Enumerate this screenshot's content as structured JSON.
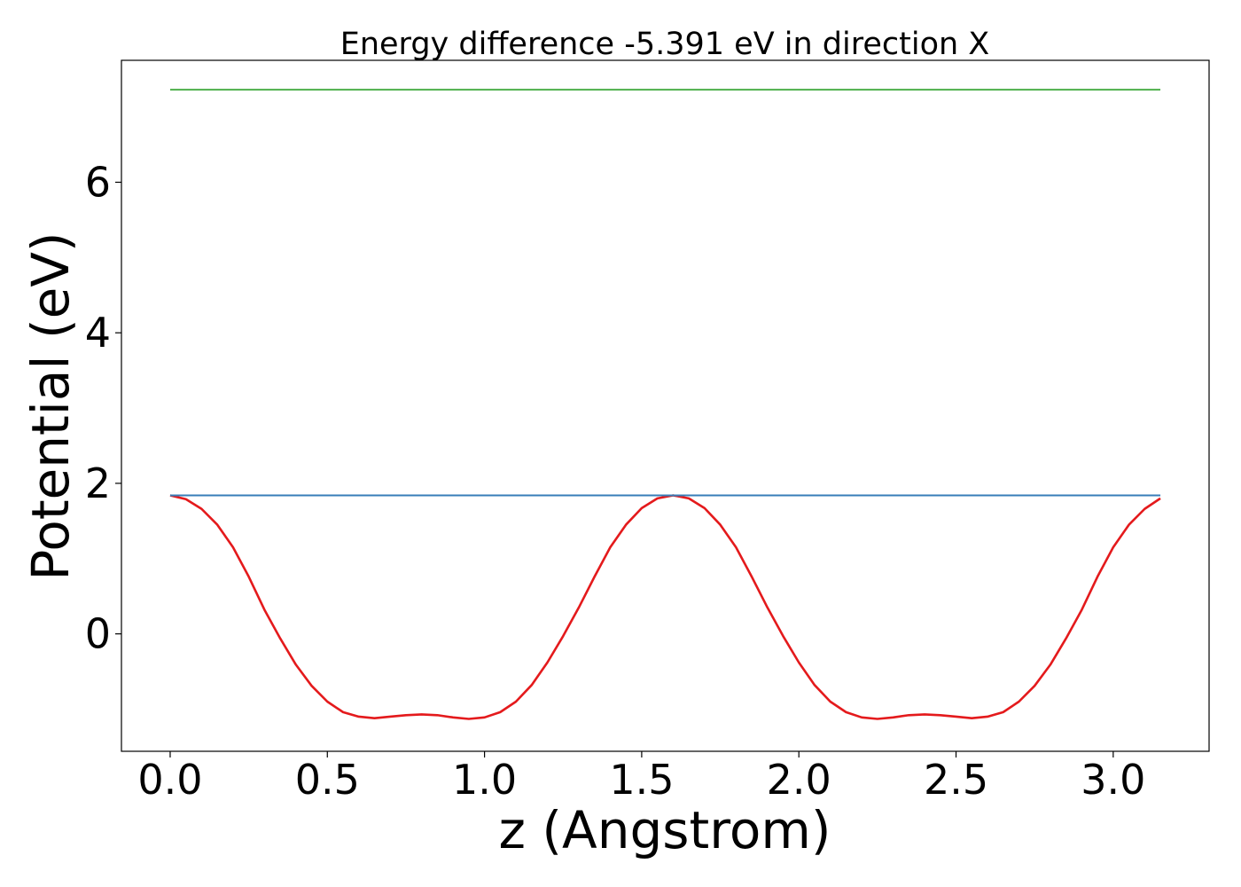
{
  "chart_data": {
    "type": "line",
    "title": "Energy difference -5.391 eV in direction X",
    "xlabel": "z (Angstrom)",
    "ylabel": "Potential (eV)",
    "xlim": [
      -0.155,
      3.305
    ],
    "ylim": [
      -1.56,
      7.62
    ],
    "xticks": [
      0.0,
      0.5,
      1.0,
      1.5,
      2.0,
      2.5,
      3.0
    ],
    "xtick_labels": [
      "0.0",
      "0.5",
      "1.0",
      "1.5",
      "2.0",
      "2.5",
      "3.0"
    ],
    "yticks": [
      0,
      2,
      4,
      6
    ],
    "ytick_labels": [
      "0",
      "2",
      "4",
      "6"
    ],
    "grid": false,
    "colors": {
      "potential": "#e41a1c",
      "blue_level": "#377eb8",
      "green_level": "#4daf4a"
    },
    "series": [
      {
        "color": "#e41a1c",
        "x": [
          0.0,
          0.05,
          0.1,
          0.15,
          0.2,
          0.25,
          0.3,
          0.35,
          0.4,
          0.45,
          0.5,
          0.55,
          0.6,
          0.65,
          0.7,
          0.75,
          0.8,
          0.85,
          0.9,
          0.95,
          1.0,
          1.05,
          1.1,
          1.15,
          1.2,
          1.25,
          1.3,
          1.35,
          1.4,
          1.45,
          1.5,
          1.55,
          1.6,
          1.65,
          1.7,
          1.75,
          1.8,
          1.85,
          1.9,
          1.95,
          2.0,
          2.05,
          2.1,
          2.15,
          2.2,
          2.25,
          2.3,
          2.35,
          2.4,
          2.45,
          2.5,
          2.55,
          2.6,
          2.65,
          2.7,
          2.75,
          2.8,
          2.85,
          2.9,
          2.95,
          3.0,
          3.05,
          3.1,
          3.15
        ],
        "y": [
          1.84,
          1.79,
          1.66,
          1.45,
          1.15,
          0.76,
          0.32,
          -0.06,
          -0.41,
          -0.69,
          -0.9,
          -1.04,
          -1.1,
          -1.12,
          -1.1,
          -1.08,
          -1.07,
          -1.08,
          -1.11,
          -1.13,
          -1.11,
          -1.04,
          -0.9,
          -0.68,
          -0.38,
          -0.03,
          0.35,
          0.76,
          1.15,
          1.45,
          1.67,
          1.8,
          1.84,
          1.8,
          1.67,
          1.45,
          1.15,
          0.76,
          0.35,
          -0.03,
          -0.38,
          -0.68,
          -0.9,
          -1.04,
          -1.11,
          -1.13,
          -1.11,
          -1.08,
          -1.07,
          -1.08,
          -1.1,
          -1.12,
          -1.1,
          -1.04,
          -0.9,
          -0.69,
          -0.41,
          -0.06,
          0.32,
          0.76,
          1.15,
          1.45,
          1.66,
          1.8
        ]
      },
      {
        "color": "#377eb8",
        "x": [
          0.0,
          3.15
        ],
        "y": [
          1.84,
          1.84
        ]
      },
      {
        "color": "#4daf4a",
        "x": [
          0.0,
          3.15
        ],
        "y": [
          7.23,
          7.23
        ]
      }
    ]
  }
}
